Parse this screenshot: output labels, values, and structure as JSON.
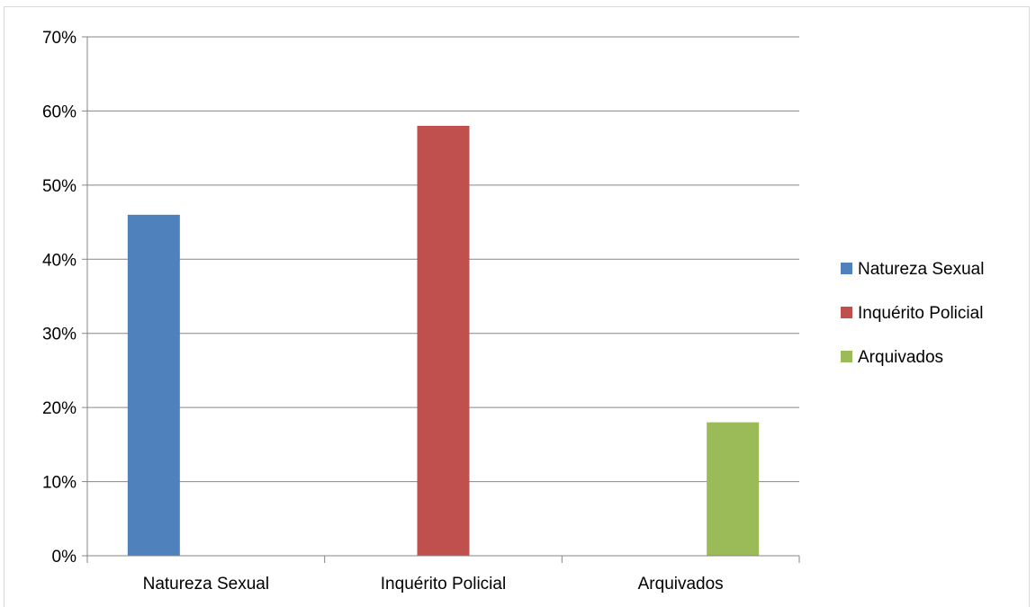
{
  "chart_data": {
    "type": "bar",
    "categories": [
      "Natureza Sexual",
      "Inquérito Policial",
      "Arquivados"
    ],
    "series": [
      {
        "name": "Natureza Sexual",
        "color": "#4F81BD",
        "values": [
          46,
          null,
          null
        ]
      },
      {
        "name": "Inquérito Policial",
        "color": "#C0504D",
        "values": [
          null,
          58,
          null
        ]
      },
      {
        "name": "Arquivados",
        "color": "#9BBB59",
        "values": [
          null,
          null,
          18
        ]
      }
    ],
    "y_unit": "%",
    "ylim": [
      0,
      70
    ],
    "yticks": [
      0,
      10,
      20,
      30,
      40,
      50,
      60,
      70
    ],
    "ytick_labels": [
      "0%",
      "10%",
      "20%",
      "30%",
      "40%",
      "50%",
      "60%",
      "70%"
    ],
    "grid": "horizontal",
    "legend_position": "right"
  }
}
